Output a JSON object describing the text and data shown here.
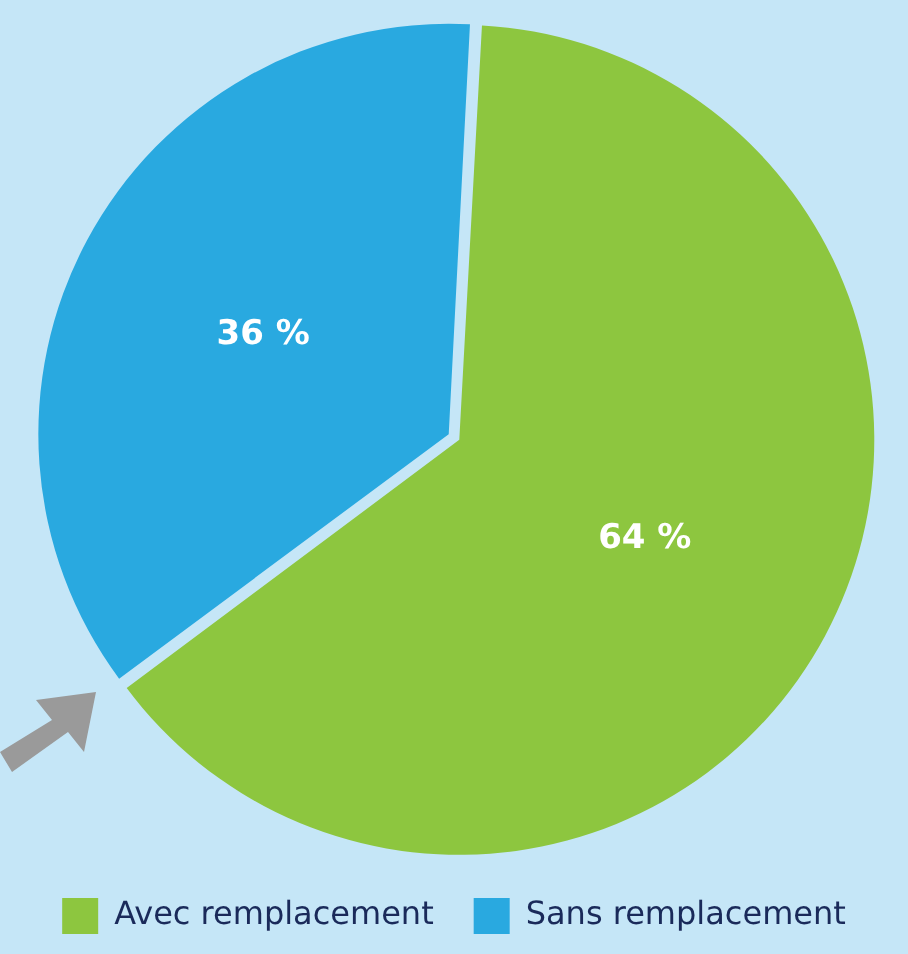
{
  "chart_data": {
    "type": "pie",
    "categories": [
      "Avec remplacement",
      "Sans remplacement"
    ],
    "values": [
      64,
      36
    ],
    "colors": [
      "#8dc63f",
      "#29a9e0"
    ],
    "value_labels": [
      "64 %",
      "36 %"
    ],
    "legend": "bottom"
  }
}
